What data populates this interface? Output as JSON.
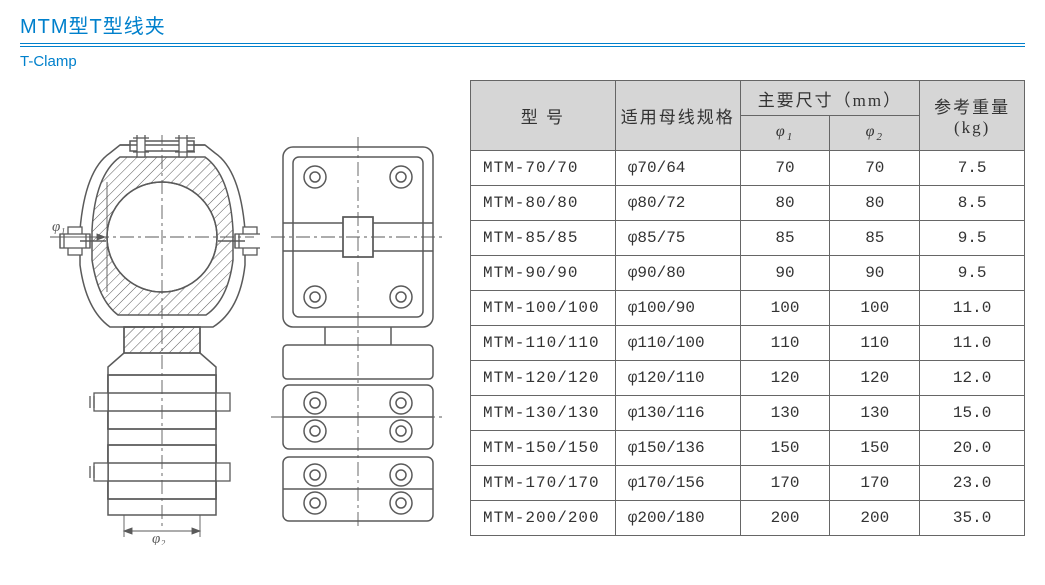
{
  "title_cn": "MTM型T型线夹",
  "title_en": "T-Clamp",
  "drawing": {
    "phi1_label": "φ₁",
    "phi2_label": "φ₂",
    "stroke_color": "#5a5a5a",
    "hatch_color": "#5a5a5a",
    "center_line_color": "#5a5a5a"
  },
  "table": {
    "header_bg": "#d6d6d6",
    "border_color": "#666666",
    "headers": {
      "model": "型    号",
      "busbar_spec": "适用母线规格",
      "main_dims": "主要尺寸（mm）",
      "phi1": "φ",
      "phi1_sub": "1",
      "phi2": "φ",
      "phi2_sub": "2",
      "weight": "参考重量(kg)"
    },
    "rows": [
      {
        "model": "MTM-70/70",
        "spec": "φ70/64",
        "phi1": "70",
        "phi2": "70",
        "weight": "7.5"
      },
      {
        "model": "MTM-80/80",
        "spec": "φ80/72",
        "phi1": "80",
        "phi2": "80",
        "weight": "8.5"
      },
      {
        "model": "MTM-85/85",
        "spec": "φ85/75",
        "phi1": "85",
        "phi2": "85",
        "weight": "9.5"
      },
      {
        "model": "MTM-90/90",
        "spec": "φ90/80",
        "phi1": "90",
        "phi2": "90",
        "weight": "9.5"
      },
      {
        "model": "MTM-100/100",
        "spec": "φ100/90",
        "phi1": "100",
        "phi2": "100",
        "weight": "11.0"
      },
      {
        "model": "MTM-110/110",
        "spec": "φ110/100",
        "phi1": "110",
        "phi2": "110",
        "weight": "11.0"
      },
      {
        "model": "MTM-120/120",
        "spec": "φ120/110",
        "phi1": "120",
        "phi2": "120",
        "weight": "12.0"
      },
      {
        "model": "MTM-130/130",
        "spec": "φ130/116",
        "phi1": "130",
        "phi2": "130",
        "weight": "15.0"
      },
      {
        "model": "MTM-150/150",
        "spec": "φ150/136",
        "phi1": "150",
        "phi2": "150",
        "weight": "20.0"
      },
      {
        "model": "MTM-170/170",
        "spec": "φ170/156",
        "phi1": "170",
        "phi2": "170",
        "weight": "23.0"
      },
      {
        "model": "MTM-200/200",
        "spec": "φ200/180",
        "phi1": "200",
        "phi2": "200",
        "weight": "35.0"
      }
    ]
  }
}
